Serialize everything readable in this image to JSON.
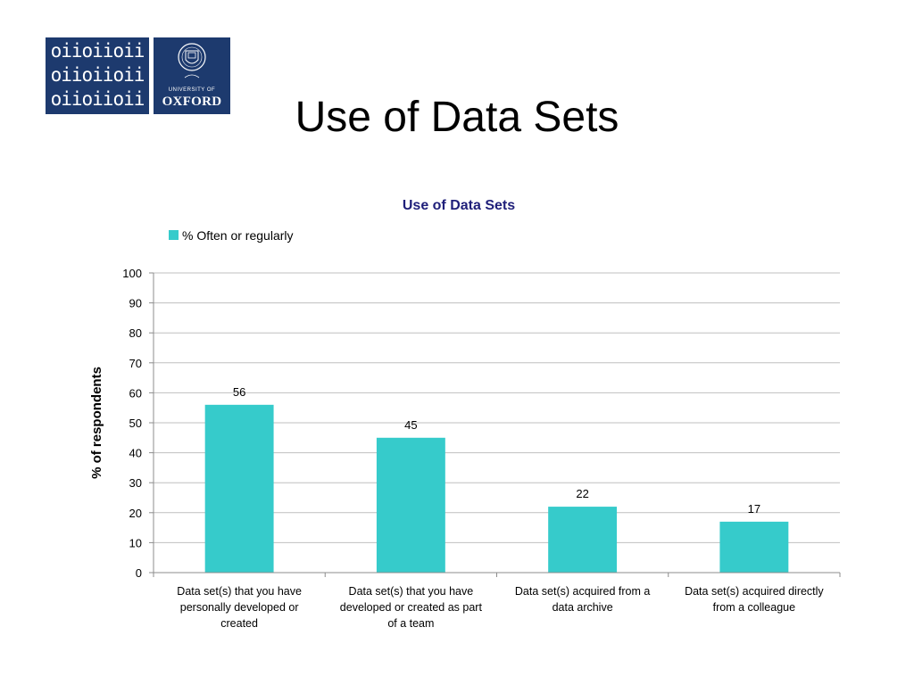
{
  "slide": {
    "title": "Use of Data Sets",
    "logo_binary_lines": [
      "oiioiioii",
      "oiioiioii",
      "oiioiioii"
    ],
    "logo_university": "UNIVERSITY OF",
    "logo_oxford": "OXFORD"
  },
  "colors": {
    "bar": "#36cbcb",
    "grid": "#bfbfbf",
    "logo": "#1d3a6e",
    "title": "#1f1f7a"
  },
  "chart_data": {
    "type": "bar",
    "title": "Use of Data Sets",
    "ylabel": "% of respondents",
    "xlabel": "",
    "ylim": [
      0,
      100
    ],
    "yticks": [
      0,
      10,
      20,
      30,
      40,
      50,
      60,
      70,
      80,
      90,
      100
    ],
    "grid": true,
    "legend_position": "top-left",
    "categories": [
      [
        "Data set(s) that you have",
        "personally developed or",
        "created"
      ],
      [
        "Data set(s) that you have",
        "developed or created as part",
        "of a team"
      ],
      [
        "Data set(s) acquired from a",
        "data archive"
      ],
      [
        "Data set(s) acquired directly",
        "from a colleague"
      ]
    ],
    "series": [
      {
        "name": "% Often or regularly",
        "values": [
          56,
          45,
          22,
          17
        ],
        "color": "#36cbcb"
      }
    ]
  }
}
